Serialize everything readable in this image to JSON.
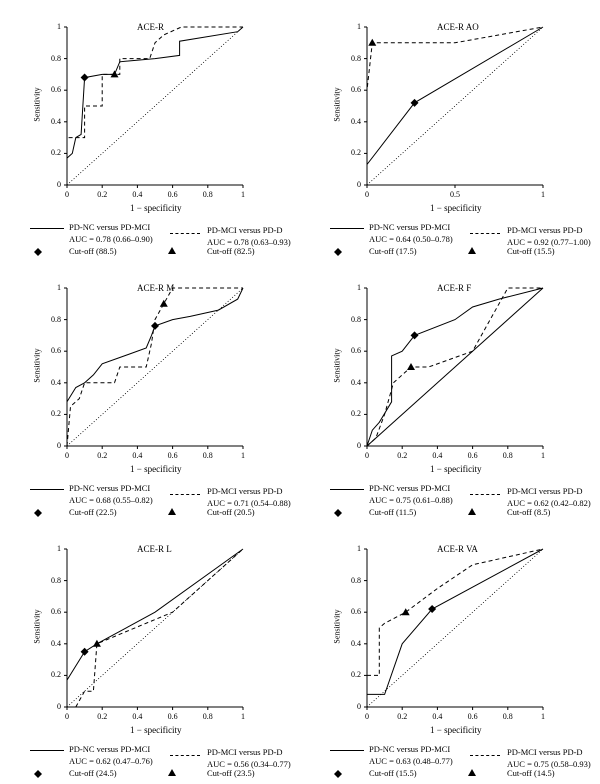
{
  "chart_data": [
    {
      "type": "line",
      "title": "ACE-R",
      "xlabel": "1 − specificity",
      "ylabel": "Sensitivity",
      "xlim": [
        0,
        1
      ],
      "ylim": [
        0,
        1
      ],
      "xticks": [
        "0",
        "0.2",
        "0.4",
        "0.6",
        "0.8",
        "1"
      ],
      "yticks": [
        "0",
        "0.2",
        "0.4",
        "0.6",
        "0.8",
        "1"
      ],
      "series": [
        {
          "name": "PD-NC versus PD-MCI",
          "style": "solid",
          "x": [
            0,
            0,
            0.03,
            0.05,
            0.08,
            0.1,
            0.2,
            0.27,
            0.3,
            0.5,
            0.64,
            0.64,
            0.97,
            1
          ],
          "y": [
            0,
            0.17,
            0.2,
            0.3,
            0.32,
            0.68,
            0.7,
            0.7,
            0.78,
            0.8,
            0.82,
            0.91,
            0.97,
            1
          ]
        },
        {
          "name": "PD-MCI versus PD-D",
          "style": "dashed",
          "x": [
            0,
            0,
            0.1,
            0.1,
            0.2,
            0.2,
            0.3,
            0.3,
            0.47,
            0.5,
            0.55,
            0.65,
            1
          ],
          "y": [
            0,
            0.3,
            0.3,
            0.5,
            0.5,
            0.7,
            0.7,
            0.8,
            0.8,
            0.9,
            0.95,
            1,
            1
          ]
        },
        {
          "name": "",
          "style": "dotted",
          "x": [
            0,
            1
          ],
          "y": [
            0,
            1
          ]
        }
      ],
      "markers": [
        {
          "shape": "diamond",
          "x": 0.1,
          "y": 0.68
        },
        {
          "shape": "triangle",
          "x": 0.27,
          "y": 0.7
        }
      ],
      "legend": {
        "solid_label": "PD-NC versus PD-MCI",
        "solid_auc": "AUC = 0.78 (0.66–0.90)",
        "dashed_label": "PD-MCI versus PD-D",
        "dashed_auc": "AUC = 0.78 (0.63–0.93)",
        "diamond_label": "Cut-off (88.5)",
        "triangle_label": "Cut-off (82.5)"
      }
    },
    {
      "type": "line",
      "title": "ACE-R AO",
      "xlabel": "1 − specificity",
      "ylabel": "Sensitivity",
      "xlim": [
        0,
        1
      ],
      "ylim": [
        0,
        1
      ],
      "xticks": [
        "0",
        "0.5",
        "1"
      ],
      "yticks": [
        "0",
        "0.2",
        "0.4",
        "0.6",
        "0.8",
        "1"
      ],
      "series": [
        {
          "name": "PD-NC versus PD-MCI",
          "style": "solid",
          "x": [
            0,
            0,
            0.27,
            1
          ],
          "y": [
            0,
            0.13,
            0.52,
            1
          ]
        },
        {
          "name": "PD-MCI versus PD-D",
          "style": "dashed",
          "x": [
            0,
            0,
            0.03,
            0.5,
            1
          ],
          "y": [
            0,
            0.6,
            0.9,
            0.9,
            1
          ]
        },
        {
          "name": "",
          "style": "dotted",
          "x": [
            0,
            1
          ],
          "y": [
            0,
            1
          ]
        }
      ],
      "markers": [
        {
          "shape": "diamond",
          "x": 0.27,
          "y": 0.52
        },
        {
          "shape": "triangle",
          "x": 0.03,
          "y": 0.9
        }
      ],
      "legend": {
        "solid_label": "PD-NC versus PD-MCI",
        "solid_auc": "AUC = 0.64 (0.50–0.78)",
        "dashed_label": "PD-MCI versus PD-D",
        "dashed_auc": "AUC = 0.92 (0.77–1.00)",
        "diamond_label": "Cut-off (17.5)",
        "triangle_label": "Cut-off (15.5)"
      }
    },
    {
      "type": "line",
      "title": "ACE-R M",
      "xlabel": "1 − specificity",
      "ylabel": "Sensitivity",
      "xlim": [
        0,
        1
      ],
      "ylim": [
        0,
        1
      ],
      "xticks": [
        "0",
        "0.2",
        "0.4",
        "0.6",
        "0.8",
        "1"
      ],
      "yticks": [
        "0",
        "0.2",
        "0.4",
        "0.6",
        "0.8",
        "1"
      ],
      "series": [
        {
          "name": "PD-NC versus PD-MCI",
          "style": "solid",
          "x": [
            0,
            0,
            0.05,
            0.1,
            0.15,
            0.2,
            0.3,
            0.45,
            0.48,
            0.5,
            0.6,
            0.7,
            0.86,
            0.97,
            1
          ],
          "y": [
            0,
            0.28,
            0.37,
            0.4,
            0.45,
            0.52,
            0.56,
            0.62,
            0.7,
            0.76,
            0.8,
            0.82,
            0.86,
            0.93,
            1
          ]
        },
        {
          "name": "PD-MCI versus PD-D",
          "style": "dashed",
          "x": [
            0,
            0.02,
            0.07,
            0.1,
            0.27,
            0.3,
            0.45,
            0.48,
            0.5,
            0.55,
            0.6,
            1
          ],
          "y": [
            0,
            0.25,
            0.3,
            0.4,
            0.4,
            0.5,
            0.5,
            0.65,
            0.8,
            0.9,
            1,
            1
          ]
        },
        {
          "name": "",
          "style": "dotted",
          "x": [
            0,
            1
          ],
          "y": [
            0,
            1
          ]
        }
      ],
      "markers": [
        {
          "shape": "diamond",
          "x": 0.5,
          "y": 0.76
        },
        {
          "shape": "triangle",
          "x": 0.55,
          "y": 0.9
        }
      ],
      "legend": {
        "solid_label": "PD-NC versus PD-MCI",
        "solid_auc": "AUC = 0.68 (0.55–0.82)",
        "dashed_label": "PD-MCI versus PD-D",
        "dashed_auc": "AUC = 0.71 (0.54–0.88)",
        "diamond_label": "Cut-off (22.5)",
        "triangle_label": "Cut-off (20.5)"
      }
    },
    {
      "type": "line",
      "title": "ACE-R F",
      "xlabel": "1 − specificity",
      "ylabel": "Sensitivity",
      "xlim": [
        0,
        1
      ],
      "ylim": [
        0,
        1
      ],
      "xticks": [
        "0",
        "0.2",
        "0.4",
        "0.6",
        "0.8",
        "1"
      ],
      "yticks": [
        "0",
        "0.2",
        "0.4",
        "0.6",
        "0.8",
        "1"
      ],
      "series": [
        {
          "name": "PD-NC versus PD-MCI",
          "style": "solid",
          "x": [
            0,
            0.03,
            0.07,
            0.14,
            0.14,
            0.2,
            0.27,
            0.5,
            0.6,
            0.75,
            1
          ],
          "y": [
            0,
            0.1,
            0.15,
            0.28,
            0.57,
            0.6,
            0.7,
            0.8,
            0.88,
            0.93,
            1
          ]
        },
        {
          "name": "PD-MCI versus PD-D",
          "style": "dashed",
          "x": [
            0,
            0.05,
            0.1,
            0.15,
            0.25,
            0.35,
            0.6,
            0.8,
            1
          ],
          "y": [
            0,
            0.05,
            0.2,
            0.4,
            0.5,
            0.5,
            0.6,
            1,
            1
          ]
        },
        {
          "name": "",
          "style": "solid-diag",
          "x": [
            0,
            1
          ],
          "y": [
            0,
            1
          ]
        }
      ],
      "markers": [
        {
          "shape": "diamond",
          "x": 0.27,
          "y": 0.7
        },
        {
          "shape": "triangle",
          "x": 0.25,
          "y": 0.5
        }
      ],
      "legend": {
        "solid_label": "PD-NC versus PD-MCI",
        "solid_auc": "AUC = 0.75 (0.61–0.88)",
        "dashed_label": "PD-MCI versus PD-D",
        "dashed_auc": "AUC = 0.62 (0.42–0.82)",
        "diamond_label": "Cut-off (11.5)",
        "triangle_label": "Cut-off (8.5)"
      }
    },
    {
      "type": "line",
      "title": "ACE-R L",
      "xlabel": "1 − specificity",
      "ylabel": "Sensitivity",
      "xlim": [
        0,
        1
      ],
      "ylim": [
        0,
        1
      ],
      "xticks": [
        "0",
        "0.2",
        "0.4",
        "0.6",
        "0.8",
        "1"
      ],
      "yticks": [
        "0",
        "0.2",
        "0.4",
        "0.6",
        "0.8",
        "1"
      ],
      "series": [
        {
          "name": "PD-NC versus PD-MCI",
          "style": "solid",
          "x": [
            0,
            0.1,
            0.17,
            0.5,
            1
          ],
          "y": [
            0.17,
            0.35,
            0.4,
            0.6,
            1
          ]
        },
        {
          "name": "PD-MCI versus PD-D",
          "style": "dashed",
          "x": [
            0.05,
            0.1,
            0.15,
            0.17,
            0.6,
            1
          ],
          "y": [
            0,
            0.1,
            0.1,
            0.4,
            0.6,
            1
          ]
        },
        {
          "name": "",
          "style": "dotted",
          "x": [
            0,
            1
          ],
          "y": [
            0,
            1
          ]
        }
      ],
      "markers": [
        {
          "shape": "diamond",
          "x": 0.1,
          "y": 0.35
        },
        {
          "shape": "triangle",
          "x": 0.17,
          "y": 0.4
        }
      ],
      "legend": {
        "solid_label": "PD-NC versus PD-MCI",
        "solid_auc": "AUC = 0.62 (0.47–0.76)",
        "dashed_label": "PD-MCI versus PD-D",
        "dashed_auc": "AUC = 0.56 (0.34–0.77)",
        "diamond_label": "Cut-off (24.5)",
        "triangle_label": "Cut-off (23.5)"
      }
    },
    {
      "type": "line",
      "title": "ACE-R VA",
      "xlabel": "1 − specificity",
      "ylabel": "Sensitivity",
      "xlim": [
        0,
        1
      ],
      "ylim": [
        0,
        1
      ],
      "xticks": [
        "0",
        "0.2",
        "0.4",
        "0.6",
        "0.8",
        "1"
      ],
      "yticks": [
        "0",
        "0.2",
        "0.4",
        "0.6",
        "0.8",
        "1"
      ],
      "series": [
        {
          "name": "PD-NC versus PD-MCI",
          "style": "solid",
          "x": [
            0,
            0,
            0.1,
            0.2,
            0.37,
            1
          ],
          "y": [
            0,
            0.08,
            0.08,
            0.4,
            0.62,
            1
          ]
        },
        {
          "name": "PD-MCI versus PD-D",
          "style": "dashed",
          "x": [
            0,
            0.07,
            0.07,
            0.1,
            0.22,
            0.4,
            0.6,
            1
          ],
          "y": [
            0.2,
            0.2,
            0.5,
            0.53,
            0.6,
            0.75,
            0.9,
            1
          ]
        },
        {
          "name": "",
          "style": "dotted",
          "x": [
            0,
            1
          ],
          "y": [
            0,
            1
          ]
        }
      ],
      "markers": [
        {
          "shape": "diamond",
          "x": 0.37,
          "y": 0.62
        },
        {
          "shape": "triangle",
          "x": 0.22,
          "y": 0.6
        }
      ],
      "legend": {
        "solid_label": "PD-NC versus PD-MCI",
        "solid_auc": "AUC = 0.63 (0.48–0.77)",
        "dashed_label": "PD-MCI versus PD-D",
        "dashed_auc": "AUC = 0.75 (0.58–0.93)",
        "diamond_label": "Cut-off (15.5)",
        "triangle_label": "Cut-off (14.5)"
      }
    }
  ]
}
